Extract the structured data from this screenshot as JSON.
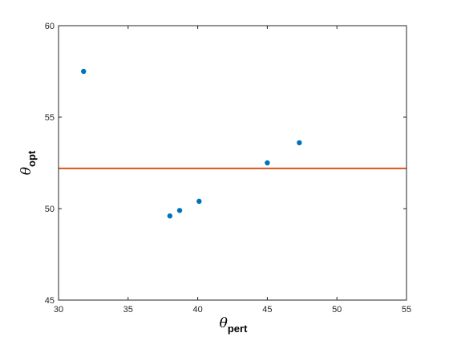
{
  "chart_data": {
    "type": "scatter",
    "xlim": [
      30,
      55
    ],
    "ylim": [
      45,
      60
    ],
    "x_ticks": [
      30,
      35,
      40,
      45,
      50,
      55
    ],
    "y_ticks": [
      45,
      50,
      55,
      60
    ],
    "xlabel": {
      "symbol": "θ",
      "subscript": "pert"
    },
    "ylabel": {
      "symbol": "θ",
      "subscript": "opt"
    },
    "grid": false,
    "series": [
      {
        "type": "scatter",
        "color": "#0072BD",
        "points": [
          {
            "x": 31.8,
            "y": 57.5
          },
          {
            "x": 38.0,
            "y": 49.6
          },
          {
            "x": 38.7,
            "y": 49.9
          },
          {
            "x": 40.1,
            "y": 50.4
          },
          {
            "x": 45.0,
            "y": 52.5
          },
          {
            "x": 47.3,
            "y": 53.6
          }
        ]
      },
      {
        "type": "hline",
        "color": "#D95319",
        "y": 52.2
      }
    ]
  }
}
